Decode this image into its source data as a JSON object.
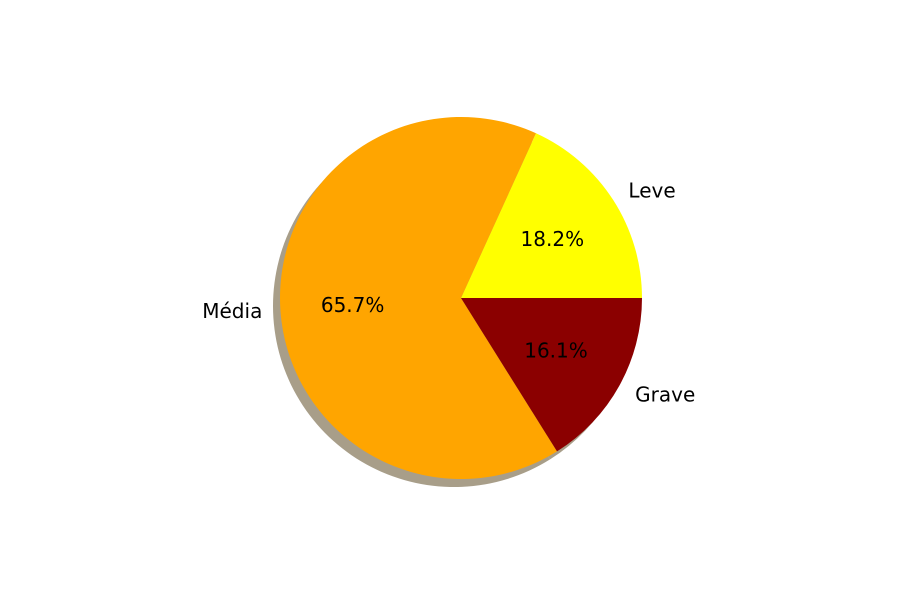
{
  "chart_data": {
    "type": "pie",
    "title": "",
    "shadow": true,
    "start_angle_deg": 0,
    "direction": "counterclockwise",
    "slices": [
      {
        "label": "Leve",
        "value": 18.2,
        "pct_text": "18.2%",
        "color": "#ffff00"
      },
      {
        "label": "Média",
        "value": 65.7,
        "pct_text": "65.7%",
        "color": "#ffa500"
      },
      {
        "label": "Grave",
        "value": 16.1,
        "pct_text": "16.1%",
        "color": "#8b0000"
      }
    ]
  }
}
